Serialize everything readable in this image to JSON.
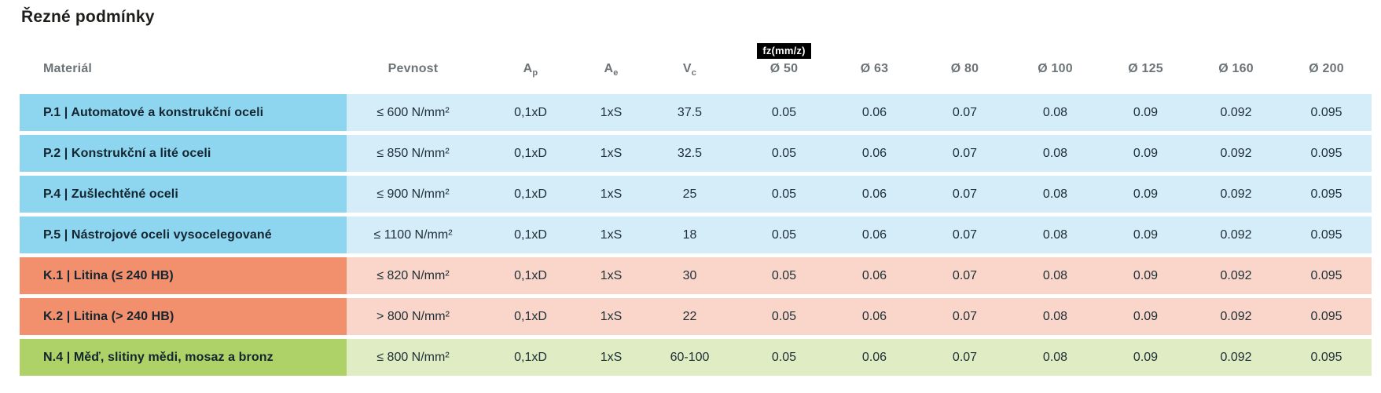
{
  "title": "Řezné podmínky",
  "colors": {
    "steel_accent": "#8ed5f0",
    "steel_tint": "#d5edf9",
    "cast_iron_accent": "#f2906e",
    "cast_iron_tint": "#f9d6c9",
    "nonferrous_accent": "#aed268",
    "nonferrous_tint": "#e0ecc3",
    "badge_bg": "#000000",
    "badge_fg": "#ffffff",
    "header_text": "#6d7478",
    "title_text": "#1e1e1c"
  },
  "table": {
    "headers": {
      "material": "Materiál",
      "pevnost": "Pevnost",
      "ap": {
        "base": "A",
        "sub": "p"
      },
      "ae": {
        "base": "A",
        "sub": "e"
      },
      "vc": {
        "base": "V",
        "sub": "c"
      },
      "fz_badge": "fz(mm/z)",
      "diameters": [
        "Ø 50",
        "Ø 63",
        "Ø 80",
        "Ø 100",
        "Ø 125",
        "Ø 160",
        "Ø 200"
      ]
    },
    "rows": [
      {
        "group": "P",
        "material": "P.1 | Automatové a konstrukční oceli",
        "pevnost": "≤ 600 N/mm²",
        "ap": "0,1xD",
        "ae": "1xS",
        "vc": "37.5",
        "fz": [
          "0.05",
          "0.06",
          "0.07",
          "0.08",
          "0.09",
          "0.092",
          "0.095"
        ]
      },
      {
        "group": "P",
        "material": "P.2 | Konstrukční a lité oceli",
        "pevnost": "≤ 850 N/mm²",
        "ap": "0,1xD",
        "ae": "1xS",
        "vc": "32.5",
        "fz": [
          "0.05",
          "0.06",
          "0.07",
          "0.08",
          "0.09",
          "0.092",
          "0.095"
        ]
      },
      {
        "group": "P",
        "material": "P.4 | Zušlechtěné oceli",
        "pevnost": "≤ 900 N/mm²",
        "ap": "0,1xD",
        "ae": "1xS",
        "vc": "25",
        "fz": [
          "0.05",
          "0.06",
          "0.07",
          "0.08",
          "0.09",
          "0.092",
          "0.095"
        ]
      },
      {
        "group": "P",
        "material": "P.5 | Nástrojové oceli vysocelegované",
        "pevnost": "≤ 1100 N/mm²",
        "ap": "0,1xD",
        "ae": "1xS",
        "vc": "18",
        "fz": [
          "0.05",
          "0.06",
          "0.07",
          "0.08",
          "0.09",
          "0.092",
          "0.095"
        ]
      },
      {
        "group": "K",
        "material": "K.1 | Litina (≤ 240 HB)",
        "pevnost": "≤ 820 N/mm²",
        "ap": "0,1xD",
        "ae": "1xS",
        "vc": "30",
        "fz": [
          "0.05",
          "0.06",
          "0.07",
          "0.08",
          "0.09",
          "0.092",
          "0.095"
        ]
      },
      {
        "group": "K",
        "material": "K.2 | Litina (> 240 HB)",
        "pevnost": "> 800 N/mm²",
        "ap": "0,1xD",
        "ae": "1xS",
        "vc": "22",
        "fz": [
          "0.05",
          "0.06",
          "0.07",
          "0.08",
          "0.09",
          "0.092",
          "0.095"
        ]
      },
      {
        "group": "N",
        "material": "N.4 | Měď, slitiny mědi, mosaz a bronz",
        "pevnost": "≤ 800 N/mm²",
        "ap": "0,1xD",
        "ae": "1xS",
        "vc": "60-100",
        "fz": [
          "0.05",
          "0.06",
          "0.07",
          "0.08",
          "0.09",
          "0.092",
          "0.095"
        ]
      }
    ]
  }
}
